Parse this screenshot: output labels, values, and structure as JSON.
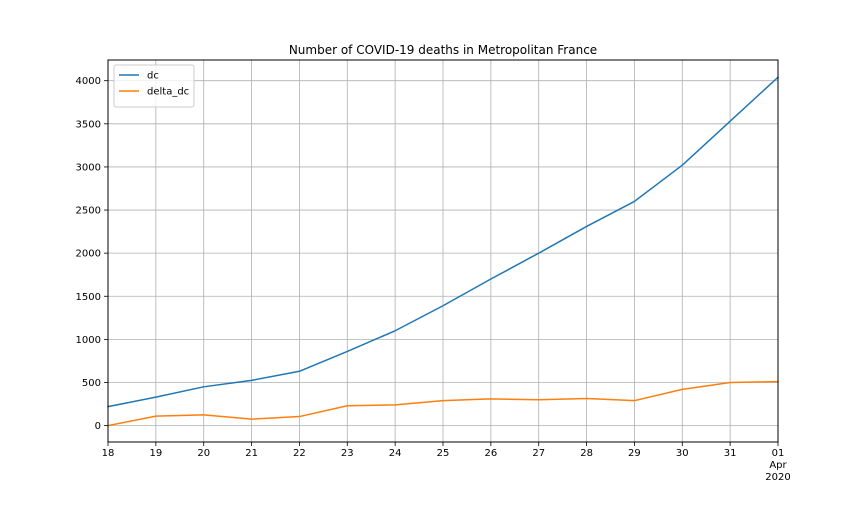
{
  "chart_data": {
    "type": "line",
    "title": "Number of COVID-19 deaths in Metropolitan France",
    "xlabel": "",
    "ylabel": "",
    "categories": [
      "18",
      "19",
      "20",
      "21",
      "22",
      "23",
      "24",
      "25",
      "26",
      "27",
      "28",
      "29",
      "30",
      "31",
      "01"
    ],
    "x_dates": [
      "2020-03-18",
      "2020-03-19",
      "2020-03-20",
      "2020-03-21",
      "2020-03-22",
      "2020-03-23",
      "2020-03-24",
      "2020-03-25",
      "2020-03-26",
      "2020-03-27",
      "2020-03-28",
      "2020-03-29",
      "2020-03-30",
      "2020-03-31",
      "2020-04-01"
    ],
    "x_tick_secondary": {
      "01": [
        "Apr",
        "2020"
      ]
    },
    "series": [
      {
        "name": "dc",
        "color": "#1f77b4",
        "values": [
          220,
          330,
          450,
          525,
          630,
          860,
          1100,
          1390,
          1700,
          2000,
          2310,
          2600,
          3020,
          3530,
          4040
        ]
      },
      {
        "name": "delta_dc",
        "color": "#ff7f0e",
        "values": [
          0,
          110,
          125,
          75,
          105,
          230,
          240,
          290,
          310,
          300,
          315,
          290,
          420,
          500,
          510
        ]
      }
    ],
    "ylim": [
      -190,
      4240
    ],
    "yticks": [
      0,
      500,
      1000,
      1500,
      2000,
      2500,
      3000,
      3500,
      4000
    ],
    "grid": true,
    "legend_position": "top-left"
  }
}
